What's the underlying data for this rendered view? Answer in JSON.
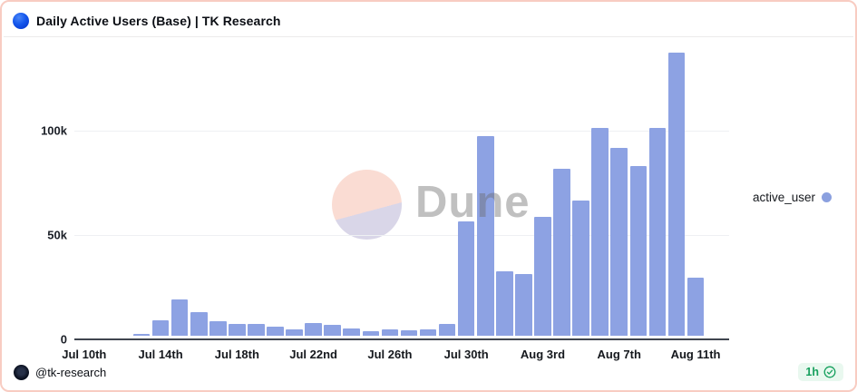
{
  "header": {
    "title": "Daily Active Users (Base) | TK Research",
    "icon": "base-chain-logo",
    "icon_color": "#1557ec"
  },
  "chart_data": {
    "type": "bar",
    "title": "Daily Active Users (Base) | TK Research",
    "xlabel": "",
    "ylabel": "",
    "categories": [
      "Jul 10",
      "Jul 11",
      "Jul 12",
      "Jul 13",
      "Jul 14",
      "Jul 15",
      "Jul 16",
      "Jul 17",
      "Jul 18",
      "Jul 19",
      "Jul 20",
      "Jul 21",
      "Jul 22",
      "Jul 23",
      "Jul 24",
      "Jul 25",
      "Jul 26",
      "Jul 27",
      "Jul 28",
      "Jul 29",
      "Jul 30",
      "Jul 31",
      "Aug 1",
      "Aug 2",
      "Aug 3",
      "Aug 4",
      "Aug 5",
      "Aug 6",
      "Aug 7",
      "Aug 8",
      "Aug 9",
      "Aug 10",
      "Aug 11"
    ],
    "series": [
      {
        "name": "active_user",
        "color": "#8da2e3",
        "values": [
          0,
          0,
          0,
          1000,
          7500,
          17500,
          11500,
          7100,
          5600,
          5500,
          4200,
          3200,
          6300,
          5300,
          3600,
          2300,
          3000,
          2700,
          3000,
          5700,
          55000,
          95500,
          31000,
          29700,
          57000,
          80000,
          65000,
          99500,
          90000,
          81300,
          99700,
          135500,
          28000
        ]
      }
    ],
    "ylim": [
      0,
      140000
    ],
    "yticks": [
      {
        "value": 0,
        "label": "0"
      },
      {
        "value": 50000,
        "label": "50k"
      },
      {
        "value": 100000,
        "label": "100k"
      }
    ],
    "xticks": [
      {
        "index": 0,
        "label": "Jul 10th"
      },
      {
        "index": 4,
        "label": "Jul 14th"
      },
      {
        "index": 8,
        "label": "Jul 18th"
      },
      {
        "index": 12,
        "label": "Jul 22nd"
      },
      {
        "index": 16,
        "label": "Jul 26th"
      },
      {
        "index": 20,
        "label": "Jul 30th"
      },
      {
        "index": 24,
        "label": "Aug 3rd"
      },
      {
        "index": 28,
        "label": "Aug 7th"
      },
      {
        "index": 32,
        "label": "Aug 11th"
      }
    ],
    "grid": "horizontal",
    "legend_position": "right"
  },
  "legend": {
    "label": "active_user",
    "marker_color": "#8ba0df"
  },
  "watermark": {
    "text": "Dune",
    "circle_top_color": "#fadcd3",
    "circle_bottom_color": "#d9d6e8"
  },
  "footer": {
    "handle": "@tk-research",
    "badge_time": "1h",
    "badge_icon": "check-circle",
    "badge_color": "#17a05e",
    "badge_bg": "#e9f8ef"
  },
  "frame": {
    "border_color": "#f8ccc2"
  }
}
